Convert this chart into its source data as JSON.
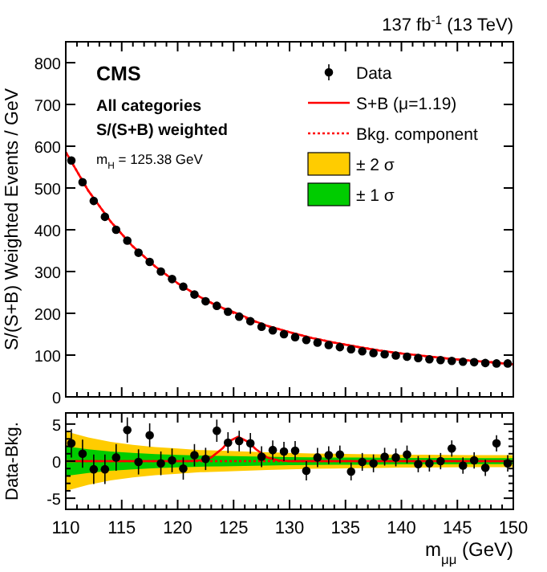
{
  "chart_data": [
    {
      "type": "scatter",
      "title": "137 fb$^{-1}$ (13 TeV)",
      "ylabel": "S/(S+B) Weighted Events / GeV",
      "annotations": [
        "CMS",
        "All categories",
        "S/(S+B) weighted",
        "m$_{H}$ = 125.38 GeV"
      ],
      "xlim": [
        110,
        150
      ],
      "xticks": [
        110,
        {
          "value": 111,
          "label": null
        },
        {
          "value": 112,
          "label": null
        },
        {
          "value": 113,
          "label": null
        },
        {
          "value": 114,
          "label": null
        },
        115,
        {
          "value": 116,
          "label": null
        },
        {
          "value": 117,
          "label": null
        },
        {
          "value": 118,
          "label": null
        },
        {
          "value": 119,
          "label": null
        },
        120,
        {
          "value": 121,
          "label": null
        },
        {
          "value": 122,
          "label": null
        },
        {
          "value": 123,
          "label": null
        },
        {
          "value": 124,
          "label": null
        },
        125,
        {
          "value": 126,
          "label": null
        },
        {
          "value": 127,
          "label": null
        },
        {
          "value": 128,
          "label": null
        },
        {
          "value": 129,
          "label": null
        },
        130,
        {
          "value": 131,
          "label": null
        },
        {
          "value": 132,
          "label": null
        },
        {
          "value": 133,
          "label": null
        },
        {
          "value": 134,
          "label": null
        },
        135,
        {
          "value": 136,
          "label": null
        },
        {
          "value": 137,
          "label": null
        },
        {
          "value": 138,
          "label": null
        },
        {
          "value": 139,
          "label": null
        },
        140,
        {
          "value": 141,
          "label": null
        },
        {
          "value": 142,
          "label": null
        },
        {
          "value": 143,
          "label": null
        },
        {
          "value": 144,
          "label": null
        },
        145,
        {
          "value": 146,
          "label": null
        },
        {
          "value": 147,
          "label": null
        },
        {
          "value": 148,
          "label": null
        },
        {
          "value": 149,
          "label": null
        },
        150
      ],
      "ylim": [
        0,
        850
      ],
      "yticks": [
        0,
        100,
        200,
        300,
        400,
        500,
        600,
        700,
        800
      ],
      "tick_labels": "y",
      "legend": "top right",
      "series": [
        {
          "name": "Bkg. component",
          "type": "line",
          "line_style": "dotted",
          "color": "#ff0000",
          "x": [
            110,
            112,
            114,
            116,
            118,
            120,
            122,
            124,
            126,
            128,
            130,
            132,
            134,
            136,
            138,
            140,
            142,
            144,
            146,
            148,
            150
          ],
          "values": [
            586,
            494,
            420,
            360,
            312,
            272,
            239,
            212,
            189,
            170,
            155,
            141,
            130,
            120,
            111,
            104,
            98,
            92,
            87,
            83,
            78
          ]
        },
        {
          "name": "S+B (μ=1.19)",
          "type": "line",
          "line_style": "solid",
          "color": "#ff0000",
          "x": [
            110,
            112,
            114,
            116,
            118,
            120,
            122,
            123,
            124,
            125,
            126,
            127,
            128,
            130,
            132,
            134,
            136,
            138,
            140,
            142,
            144,
            146,
            148,
            150
          ],
          "values": [
            586,
            494,
            420,
            360,
            312,
            272,
            239,
            225,
            213,
            203,
            192,
            180,
            170,
            155,
            141,
            130,
            120,
            111,
            104,
            98,
            92,
            87,
            83,
            78
          ]
        },
        {
          "name": "Data",
          "type": "scatter",
          "marker": "circle",
          "color": "#000000",
          "x": [
            110.5,
            111.5,
            112.5,
            113.5,
            114.5,
            115.5,
            116.5,
            117.5,
            118.5,
            119.5,
            120.5,
            121.5,
            122.5,
            123.5,
            124.5,
            125.5,
            126.5,
            127.5,
            128.5,
            129.5,
            130.5,
            131.5,
            132.5,
            133.5,
            134.5,
            135.5,
            136.5,
            137.5,
            138.5,
            139.5,
            140.5,
            141.5,
            142.5,
            143.5,
            144.5,
            145.5,
            146.5,
            147.5,
            148.5,
            149.5
          ],
          "values": [
            566,
            514,
            469,
            431,
            400,
            374,
            345,
            323,
            300,
            282,
            264,
            245,
            229,
            218,
            204,
            192,
            181,
            168,
            159,
            150,
            143,
            136,
            130,
            124,
            119,
            114,
            109,
            105,
            102,
            99,
            96,
            93,
            90,
            88,
            86,
            84,
            83,
            81,
            80,
            80
          ]
        }
      ]
    },
    {
      "type": "scatter",
      "xlabel": "m$_{μμ}$ (GeV)",
      "ylabel": "Data-Bkg.",
      "xlim": [
        110,
        150
      ],
      "xticks": [
        110,
        {
          "value": 111,
          "label": null
        },
        {
          "value": 112,
          "label": null
        },
        {
          "value": 113,
          "label": null
        },
        {
          "value": 114,
          "label": null
        },
        115,
        {
          "value": 116,
          "label": null
        },
        {
          "value": 117,
          "label": null
        },
        {
          "value": 118,
          "label": null
        },
        {
          "value": 119,
          "label": null
        },
        120,
        {
          "value": 121,
          "label": null
        },
        {
          "value": 122,
          "label": null
        },
        {
          "value": 123,
          "label": null
        },
        {
          "value": 124,
          "label": null
        },
        125,
        {
          "value": 126,
          "label": null
        },
        {
          "value": 127,
          "label": null
        },
        {
          "value": 128,
          "label": null
        },
        {
          "value": 129,
          "label": null
        },
        130,
        {
          "value": 131,
          "label": null
        },
        {
          "value": 132,
          "label": null
        },
        {
          "value": 133,
          "label": null
        },
        {
          "value": 134,
          "label": null
        },
        135,
        {
          "value": 136,
          "label": null
        },
        {
          "value": 137,
          "label": null
        },
        {
          "value": 138,
          "label": null
        },
        {
          "value": 139,
          "label": null
        },
        140,
        {
          "value": 141,
          "label": null
        },
        {
          "value": 142,
          "label": null
        },
        {
          "value": 143,
          "label": null
        },
        {
          "value": 144,
          "label": null
        },
        145,
        {
          "value": 146,
          "label": null
        },
        {
          "value": 147,
          "label": null
        },
        {
          "value": 148,
          "label": null
        },
        {
          "value": 149,
          "label": null
        },
        150
      ],
      "ylim": [
        -6.5,
        6.5
      ],
      "yticks": [
        -5,
        {
          "value": -4,
          "label": null
        },
        {
          "value": -3,
          "label": null
        },
        {
          "value": -2,
          "label": null
        },
        {
          "value": -1,
          "label": null
        },
        0,
        {
          "value": 1,
          "label": null
        },
        {
          "value": 2,
          "label": null
        },
        {
          "value": 3,
          "label": null
        },
        {
          "value": 4,
          "label": null
        },
        5
      ],
      "legend": "top right",
      "series": [
        {
          "name": "± 2 σ",
          "type": "line",
          "color": "#ffcc00",
          "x": [
            110,
            112,
            114,
            116,
            118,
            120,
            122,
            124,
            126,
            128,
            130,
            132,
            134,
            136,
            138,
            140,
            142,
            144,
            146,
            148,
            150
          ],
          "values": [
            null,
            null,
            null,
            null,
            null,
            null,
            null,
            null,
            null,
            null,
            null,
            null,
            null,
            null,
            null,
            null,
            null,
            null,
            null,
            null,
            null
          ],
          "lower": [
            -4,
            -3.2,
            -2.6,
            -2.2,
            -1.9,
            -1.7,
            -1.5,
            -1.4,
            -1.3,
            -1.2,
            -1.1,
            -1.04,
            -1,
            -0.96,
            -0.92,
            -0.88,
            -0.86,
            -0.84,
            -0.82,
            -0.8,
            -0.8
          ],
          "upper": [
            4,
            3.2,
            2.6,
            2.2,
            1.9,
            1.7,
            1.5,
            1.4,
            1.3,
            1.2,
            1.1,
            1.04,
            1,
            0.96,
            0.92,
            0.88,
            0.86,
            0.84,
            0.82,
            0.8,
            0.8
          ]
        },
        {
          "name": "± 1 σ",
          "type": "line",
          "color": "#00cc00",
          "x": [
            110,
            112,
            114,
            116,
            118,
            120,
            122,
            124,
            126,
            128,
            130,
            132,
            134,
            136,
            138,
            140,
            142,
            144,
            146,
            148,
            150
          ],
          "values": [
            null,
            null,
            null,
            null,
            null,
            null,
            null,
            null,
            null,
            null,
            null,
            null,
            null,
            null,
            null,
            null,
            null,
            null,
            null,
            null,
            null
          ],
          "lower": [
            -2,
            -1.6,
            -1.3,
            -1.1,
            -0.95,
            -0.85,
            -0.75,
            -0.7,
            -0.65,
            -0.6,
            -0.55,
            -0.52,
            -0.5,
            -0.48,
            -0.46,
            -0.44,
            -0.43,
            -0.42,
            -0.41,
            -0.4,
            -0.4
          ],
          "upper": [
            2,
            1.6,
            1.3,
            1.1,
            0.95,
            0.85,
            0.75,
            0.7,
            0.65,
            0.6,
            0.55,
            0.52,
            0.5,
            0.48,
            0.46,
            0.44,
            0.43,
            0.42,
            0.41,
            0.4,
            0.4
          ]
        },
        {
          "name": "Bkg. component",
          "type": "line",
          "line_style": "dotted",
          "color": "#ff0000",
          "x": [
            110,
            150
          ],
          "values": [
            0,
            0
          ]
        },
        {
          "name": "S+B (μ=1.19)",
          "type": "line",
          "line_style": "solid",
          "color": "#ff0000",
          "x": [
            110,
            121,
            122,
            123,
            124,
            124.5,
            125.4,
            126.3,
            127,
            128,
            129,
            130,
            150
          ],
          "values": [
            0,
            0,
            0.1,
            0.5,
            1.7,
            2.6,
            3.3,
            2.6,
            1.6,
            0.5,
            0.1,
            0,
            0
          ]
        },
        {
          "name": "Data",
          "type": "scatter",
          "marker": "circle",
          "color": "#000000",
          "x": [
            110.5,
            111.5,
            112.5,
            113.5,
            114.5,
            115.5,
            116.5,
            117.5,
            118.5,
            119.5,
            120.5,
            121.5,
            122.5,
            123.5,
            124.5,
            125.5,
            126.5,
            127.5,
            128.5,
            129.5,
            130.5,
            131.5,
            132.5,
            133.5,
            134.5,
            135.5,
            136.5,
            137.5,
            138.5,
            139.5,
            140.5,
            141.5,
            142.5,
            143.5,
            144.5,
            145.5,
            146.5,
            147.5,
            148.5,
            149.5
          ],
          "values": [
            2.4,
            1.0,
            -1.1,
            -1.1,
            0.5,
            4.2,
            -0.1,
            3.5,
            -0.3,
            0.1,
            -1.0,
            0.8,
            0.3,
            4.1,
            2.5,
            2.7,
            2.4,
            0.6,
            1.5,
            1.3,
            1.4,
            -1.3,
            0.5,
            0.8,
            0.9,
            -1.4,
            -0.1,
            -0.3,
            0.6,
            0.5,
            0.9,
            -0.4,
            -0.3,
            0,
            1.7,
            -0.6,
            0.1,
            -0.9,
            2.4,
            -0.3
          ],
          "errors": [
            1.9,
            1.9,
            2.0,
            2.0,
            1.8,
            1.7,
            1.7,
            1.6,
            1.6,
            1.6,
            1.5,
            1.5,
            1.5,
            1.5,
            1.4,
            1.4,
            1.4,
            1.4,
            1.3,
            1.3,
            1.3,
            1.3,
            1.3,
            1.2,
            1.2,
            1.2,
            1.2,
            1.2,
            1.2,
            1.2,
            1.2,
            1.1,
            1.1,
            1.1,
            1.1,
            1.1,
            1.1,
            1.1,
            1.1,
            1.1
          ]
        }
      ]
    }
  ]
}
